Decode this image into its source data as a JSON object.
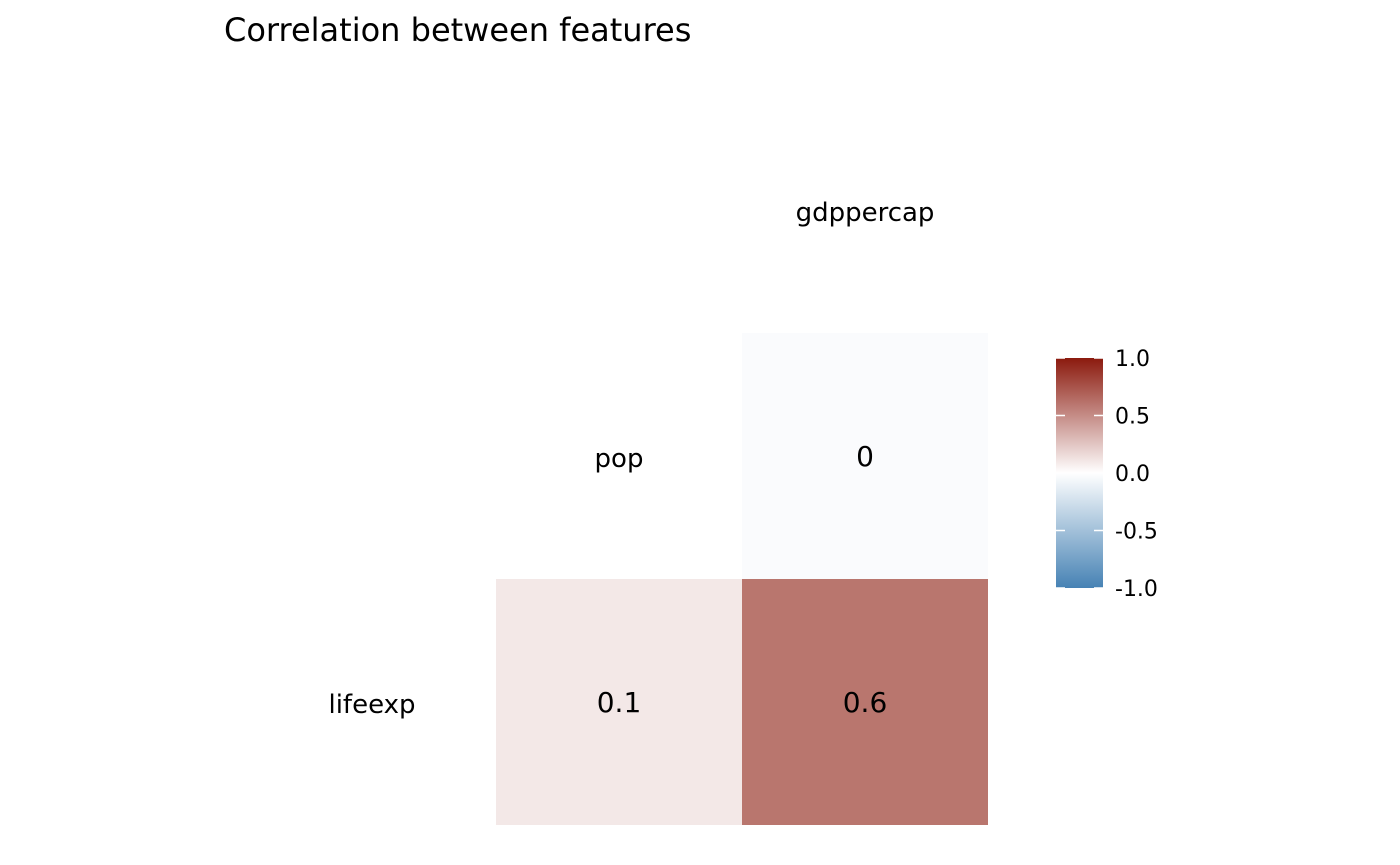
{
  "chart_data": {
    "type": "heatmap",
    "title": "Correlation between features",
    "variables": [
      "pop",
      "gdppercap",
      "lifeexp"
    ],
    "diagonal_labels": [
      {
        "name": "gdppercap"
      },
      {
        "name": "pop"
      },
      {
        "name": "lifeexp"
      }
    ],
    "cells": [
      {
        "row": "pop",
        "col": "gdppercap",
        "value": 0,
        "label": "0"
      },
      {
        "row": "lifeexp",
        "col": "pop",
        "value": 0.1,
        "label": "0.1"
      },
      {
        "row": "lifeexp",
        "col": "gdppercap",
        "value": 0.6,
        "label": "0.6"
      }
    ],
    "color_scale": {
      "low": "#4682B4",
      "mid": "#FFFFFF",
      "high": "#8B1A0E",
      "limits": [
        -1,
        1
      ],
      "ticks": [
        1.0,
        0.5,
        0.0,
        -0.5,
        -1.0
      ],
      "tick_labels": [
        "1.0",
        "0.5",
        "0.0",
        "-0.5",
        "-1.0"
      ]
    },
    "legend_position": "right",
    "grid": false
  }
}
